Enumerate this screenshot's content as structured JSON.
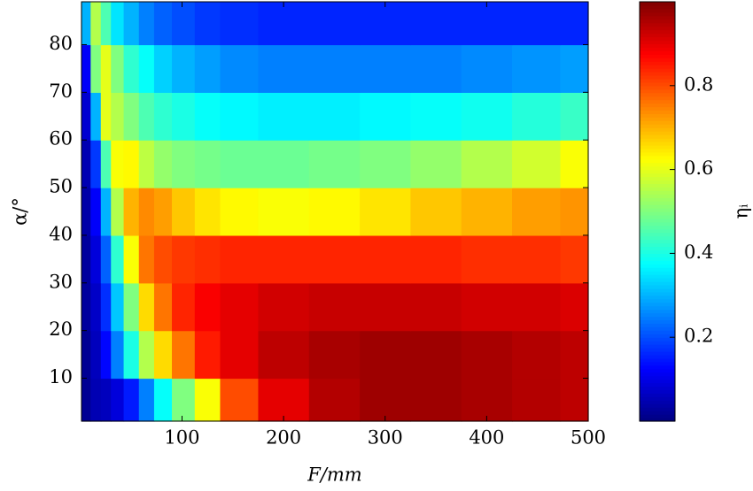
{
  "chart_data": {
    "type": "heatmap",
    "xlabel": "F/mm",
    "ylabel": "α/°",
    "colorbar_label": "ηᵢ",
    "colormap": "jet",
    "x": [
      5,
      15,
      25,
      35,
      50,
      65,
      80,
      100,
      125,
      150,
      200,
      250,
      300,
      350,
      400,
      450,
      495
    ],
    "y": [
      5,
      15,
      25,
      35,
      45,
      55,
      65,
      75,
      85
    ],
    "z": [
      [
        0.02,
        0.05,
        0.06,
        0.09,
        0.15,
        0.25,
        0.38,
        0.5,
        0.62,
        0.8,
        0.9,
        0.95,
        0.97,
        0.97,
        0.96,
        0.95,
        0.94
      ],
      [
        0.02,
        0.06,
        0.13,
        0.25,
        0.4,
        0.55,
        0.66,
        0.76,
        0.85,
        0.9,
        0.94,
        0.96,
        0.97,
        0.97,
        0.96,
        0.95,
        0.94
      ],
      [
        0.03,
        0.07,
        0.17,
        0.32,
        0.5,
        0.66,
        0.76,
        0.84,
        0.88,
        0.9,
        0.92,
        0.93,
        0.93,
        0.93,
        0.92,
        0.92,
        0.91
      ],
      [
        0.03,
        0.09,
        0.22,
        0.42,
        0.62,
        0.76,
        0.8,
        0.82,
        0.83,
        0.84,
        0.84,
        0.84,
        0.84,
        0.84,
        0.83,
        0.83,
        0.82
      ],
      [
        0.04,
        0.12,
        0.3,
        0.55,
        0.7,
        0.74,
        0.72,
        0.68,
        0.65,
        0.63,
        0.62,
        0.63,
        0.65,
        0.68,
        0.7,
        0.72,
        0.73
      ],
      [
        0.05,
        0.18,
        0.45,
        0.62,
        0.63,
        0.56,
        0.52,
        0.5,
        0.49,
        0.48,
        0.48,
        0.49,
        0.5,
        0.52,
        0.55,
        0.58,
        0.62
      ],
      [
        0.08,
        0.3,
        0.6,
        0.55,
        0.5,
        0.45,
        0.42,
        0.4,
        0.38,
        0.37,
        0.36,
        0.36,
        0.37,
        0.38,
        0.39,
        0.41,
        0.43
      ],
      [
        0.12,
        0.5,
        0.6,
        0.5,
        0.42,
        0.38,
        0.33,
        0.3,
        0.28,
        0.26,
        0.25,
        0.25,
        0.25,
        0.25,
        0.26,
        0.27,
        0.28
      ],
      [
        0.3,
        0.55,
        0.45,
        0.35,
        0.3,
        0.25,
        0.22,
        0.2,
        0.18,
        0.17,
        0.16,
        0.16,
        0.16,
        0.16,
        0.16,
        0.16,
        0.16
      ]
    ],
    "xlim": [
      1,
      500
    ],
    "ylim": [
      1,
      89
    ],
    "xticks": [
      100,
      200,
      300,
      400,
      500
    ],
    "yticks": [
      10,
      20,
      30,
      40,
      50,
      60,
      70,
      80
    ],
    "clim": [
      0,
      1
    ],
    "cticks": [
      0.2,
      0.4,
      0.6,
      0.8
    ]
  }
}
